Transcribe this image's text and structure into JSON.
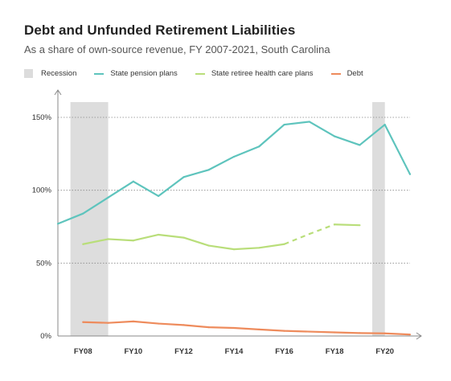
{
  "chart_data": {
    "type": "line",
    "title": "Debt and Unfunded Retirement Liabilities",
    "subtitle": "As a share of own-source revenue, FY 2007-2021, South Carolina",
    "legend": {
      "placement": "top-left",
      "recession_label": "Recession"
    },
    "x_ticks": [
      "FY08",
      "FY10",
      "FY12",
      "FY14",
      "FY16",
      "FY18",
      "FY20"
    ],
    "x_tick_years": [
      2008,
      2010,
      2012,
      2014,
      2016,
      2018,
      2020
    ],
    "y_ticks": [
      "0%",
      "50%",
      "100%",
      "150%"
    ],
    "y_tick_values": [
      0,
      50,
      100,
      150
    ],
    "xlim": [
      2007,
      2021
    ],
    "ylim": [
      0,
      165
    ],
    "grid": "horizontal dotted",
    "recessions": [
      [
        2007.5,
        2009
      ],
      [
        2019.5,
        2020
      ]
    ],
    "series": [
      {
        "name": "State pension plans",
        "color": "#5ec4bd",
        "x": [
          2007,
          2008,
          2009,
          2010,
          2011,
          2012,
          2013,
          2014,
          2015,
          2016,
          2017,
          2018,
          2019,
          2020,
          2021
        ],
        "values": [
          77,
          84,
          95,
          106,
          96,
          109,
          114,
          123,
          130,
          145,
          147,
          137,
          131,
          145,
          111
        ]
      },
      {
        "name": "State retiree health care plans",
        "color": "#b9de7a",
        "x": [
          2008,
          2009,
          2010,
          2011,
          2012,
          2013,
          2014,
          2015,
          2016,
          2017,
          2018,
          2019
        ],
        "values": [
          63,
          66.5,
          65.5,
          69.5,
          67.5,
          62,
          59.5,
          60.5,
          63,
          70,
          76.5,
          76
        ],
        "dashed_range": [
          2016,
          2018
        ]
      },
      {
        "name": "Debt",
        "color": "#ee8b5c",
        "x": [
          2008,
          2009,
          2010,
          2011,
          2012,
          2013,
          2014,
          2015,
          2016,
          2017,
          2018,
          2019,
          2020,
          2021
        ],
        "values": [
          9.5,
          9,
          10,
          8.5,
          7.5,
          6,
          5.5,
          4.5,
          3.5,
          3,
          2.5,
          2,
          1.8,
          1
        ]
      }
    ]
  }
}
